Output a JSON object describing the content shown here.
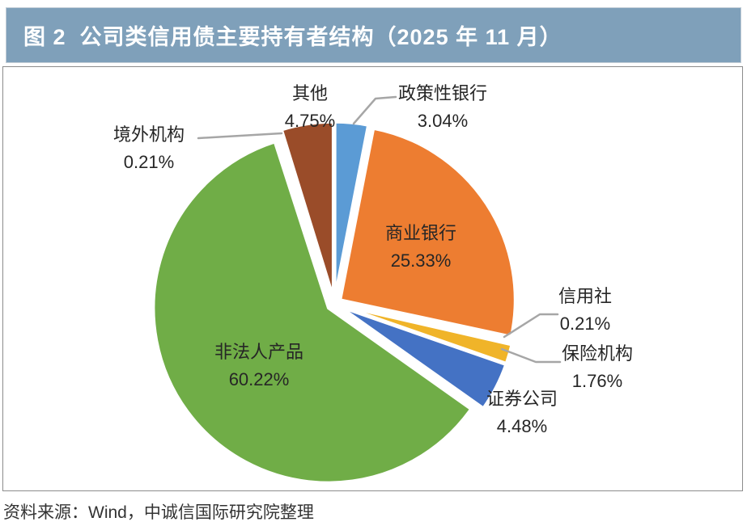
{
  "figure": {
    "title": "图 2  公司类信用债主要持有者结构（2025 年 11 月）",
    "source": "资料来源：Wind，中诚信国际研究院整理"
  },
  "chart_data": {
    "type": "pie",
    "title": "公司类信用债主要持有者结构（2025 年 11 月）",
    "value_unit": "percent",
    "direction": "clockwise",
    "start_angle_deg": 0,
    "exploded": true,
    "slices": [
      {
        "key": "policy-bank",
        "label": "政策性银行",
        "value": 3.04,
        "display": "3.04%",
        "color": "#5B9BD5",
        "label_placement": "outside-leader"
      },
      {
        "key": "commercial-bank",
        "label": "商业银行",
        "value": 25.33,
        "display": "25.33%",
        "color": "#ED7D31",
        "label_placement": "inside"
      },
      {
        "key": "credit-union",
        "label": "信用社",
        "value": 0.21,
        "display": "0.21%",
        "color": "#A5A5A5",
        "label_placement": "outside-leader"
      },
      {
        "key": "insurance",
        "label": "保险机构",
        "value": 1.76,
        "display": "1.76%",
        "color": "#F0B429",
        "label_placement": "outside-leader"
      },
      {
        "key": "securities",
        "label": "证券公司",
        "value": 4.48,
        "display": "4.48%",
        "color": "#4472C4",
        "label_placement": "outside"
      },
      {
        "key": "non-legal-person-products",
        "label": "非法人产品",
        "value": 60.22,
        "display": "60.22%",
        "color": "#70AD47",
        "label_placement": "inside"
      },
      {
        "key": "overseas",
        "label": "境外机构",
        "value": 0.21,
        "display": "0.21%",
        "color": "#264478",
        "label_placement": "outside-leader"
      },
      {
        "key": "other",
        "label": "其他",
        "value": 4.75,
        "display": "4.75%",
        "color": "#9A4C29",
        "label_placement": "outside"
      }
    ]
  },
  "colors": {
    "header_bg": "#7FA0BA",
    "header_text": "#FFFFFF",
    "chart_bg": "#FFFFFF",
    "box_border": "#8C8C8C",
    "label_text": "#262626",
    "leader_line": "#A6A6A6",
    "slice_outline": "#FFFFFF"
  }
}
